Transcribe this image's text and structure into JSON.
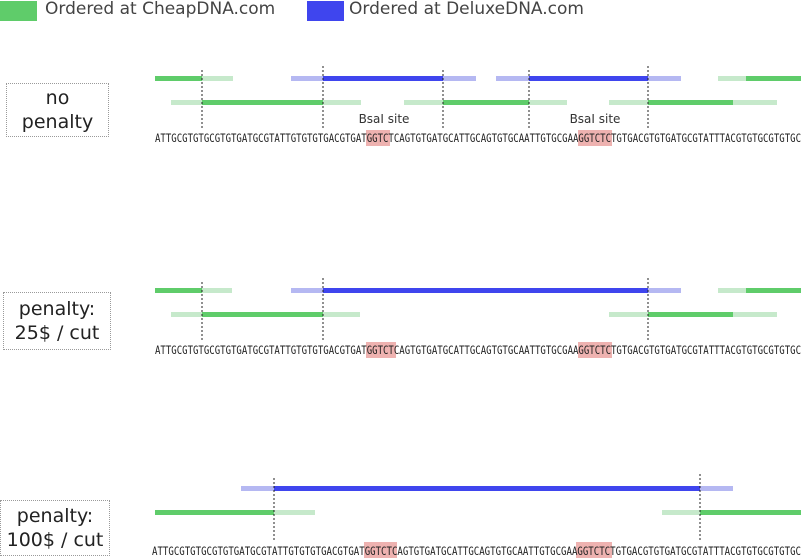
{
  "legend": {
    "cheap_label": "Ordered at CheapDNA.com",
    "deluxe_label": "Ordered at DeluxeDNA.com"
  },
  "colors": {
    "cheap": "#5fcc6a",
    "cheap_light": "#c6e9cb",
    "deluxe": "#3f45ee",
    "deluxe_light": "#b5b8f2",
    "site": "#eeb2b0",
    "cut_line": "#222222"
  },
  "sequence": "ATTGCGTGTGCGTGTGATGCGTATTGTGTGTGACGTGATGGTCTCAGTGTGATGCATTGCAGTGTGCAATTGTGCGAAGGTCTCTGTGACGTGTGATGCGTATTTACGTGTGCGTGTGC",
  "site_labels": [
    "BsaI site",
    "BsaI site"
  ],
  "panels": [
    {
      "line1": "no",
      "line2": "penalty"
    },
    {
      "line1": "penalty:",
      "line2": "25$  / cut"
    },
    {
      "line1": "penalty:",
      "line2": "100$  / cut"
    }
  ]
}
